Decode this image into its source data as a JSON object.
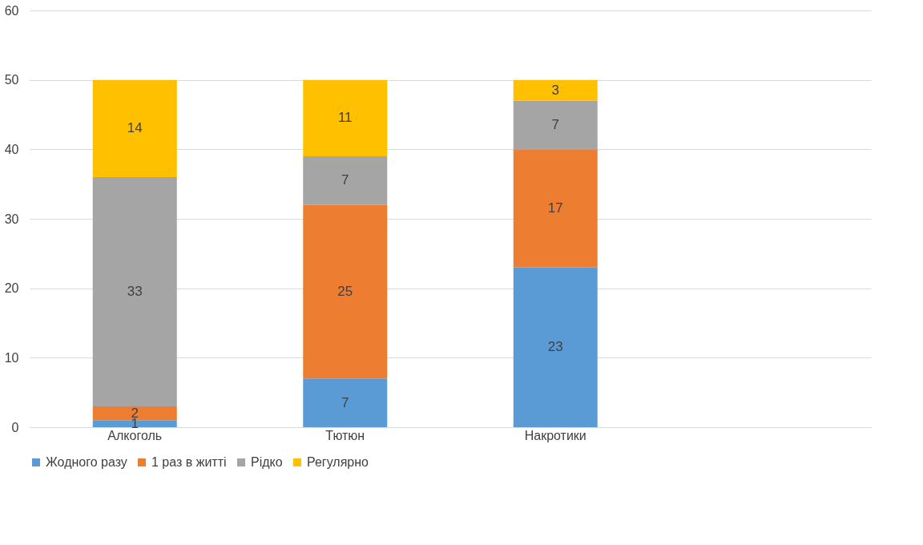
{
  "chart_data": {
    "type": "bar",
    "stacked": true,
    "categories": [
      "Алкоголь",
      "Тютюн",
      "Накротики",
      null
    ],
    "series": [
      {
        "name": "Жодного разу",
        "color": "#5b9bd5",
        "values": [
          1,
          7,
          23,
          null
        ]
      },
      {
        "name": "1 раз в житті",
        "color": "#ed7d31",
        "values": [
          2,
          25,
          17,
          null
        ]
      },
      {
        "name": "Рідко",
        "color": "#a5a5a5",
        "values": [
          33,
          7,
          7,
          null
        ]
      },
      {
        "name": "Регулярно",
        "color": "#ffc000",
        "values": [
          14,
          11,
          3,
          null
        ]
      }
    ],
    "ylim": [
      0,
      60
    ],
    "yticks": [
      0,
      10,
      20,
      30,
      40,
      50,
      60
    ],
    "grid": "y",
    "legend": "bottom",
    "data_labels": true
  }
}
